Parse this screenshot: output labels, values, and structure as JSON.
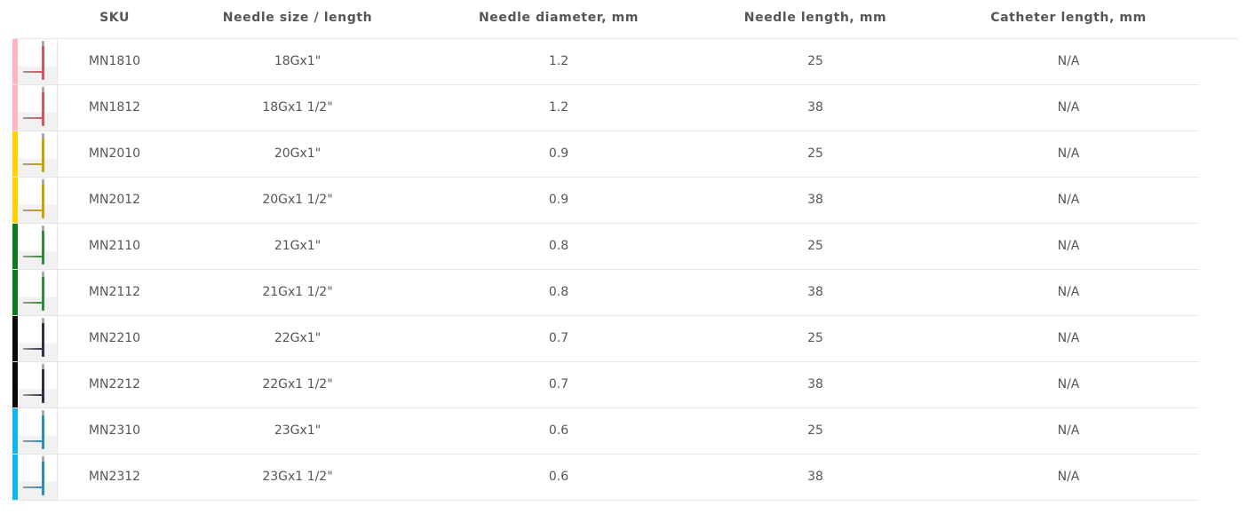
{
  "headers": {
    "sku": "SKU",
    "size": "Needle size / length",
    "diameter": "Needle diameter, mm",
    "length": "Needle length, mm",
    "catheter": "Catheter length, mm"
  },
  "rows": [
    {
      "color": "#ffb6c1",
      "needle_color": "#d9535e",
      "sku": "MN1810",
      "size": "18Gx1\"",
      "diameter": "1.2",
      "length": "25",
      "catheter": "N/A"
    },
    {
      "color": "#ffb6c1",
      "needle_color": "#d9535e",
      "sku": "MN1812",
      "size": "18Gx1 1/2\"",
      "diameter": "1.2",
      "length": "38",
      "catheter": "N/A"
    },
    {
      "color": "#ffd200",
      "needle_color": "#c9a400",
      "sku": "MN2010",
      "size": "20Gx1\"",
      "diameter": "0.9",
      "length": "25",
      "catheter": "N/A"
    },
    {
      "color": "#ffd200",
      "needle_color": "#c9a400",
      "sku": "MN2012",
      "size": "20Gx1 1/2\"",
      "diameter": "0.9",
      "length": "38",
      "catheter": "N/A"
    },
    {
      "color": "#0a7a1e",
      "needle_color": "#2e8b3a",
      "sku": "MN2110",
      "size": "21Gx1\"",
      "diameter": "0.8",
      "length": "25",
      "catheter": "N/A"
    },
    {
      "color": "#0a7a1e",
      "needle_color": "#2e8b3a",
      "sku": "MN2112",
      "size": "21Gx1 1/2\"",
      "diameter": "0.8",
      "length": "38",
      "catheter": "N/A"
    },
    {
      "color": "#0a0a0a",
      "needle_color": "#2a3345",
      "sku": "MN2210",
      "size": "22Gx1\"",
      "diameter": "0.7",
      "length": "25",
      "catheter": "N/A"
    },
    {
      "color": "#0a0a0a",
      "needle_color": "#2a3345",
      "sku": "MN2212",
      "size": "22Gx1 1/2\"",
      "diameter": "0.7",
      "length": "38",
      "catheter": "N/A"
    },
    {
      "color": "#12b5f0",
      "needle_color": "#2a8fb5",
      "sku": "MN2310",
      "size": "23Gx1\"",
      "diameter": "0.6",
      "length": "25",
      "catheter": "N/A"
    },
    {
      "color": "#12b5f0",
      "needle_color": "#2a8fb5",
      "sku": "MN2312",
      "size": "23Gx1 1/2\"",
      "diameter": "0.6",
      "length": "38",
      "catheter": "N/A"
    }
  ]
}
